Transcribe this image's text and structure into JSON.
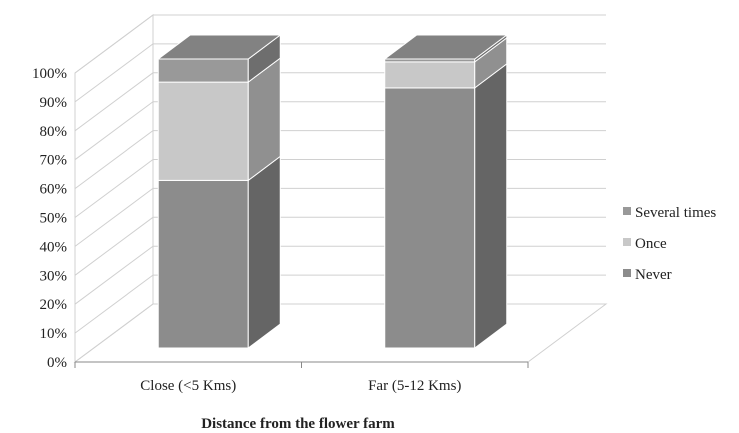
{
  "chart_data": {
    "type": "bar",
    "stacked": true,
    "percent": true,
    "three_d": true,
    "categories": [
      "Close (<5 Kms)",
      "Far (5-12 Kms)"
    ],
    "series": [
      {
        "name": "Never",
        "values": [
          58,
          90
        ]
      },
      {
        "name": "Once",
        "values": [
          34,
          9
        ]
      },
      {
        "name": "Several times",
        "values": [
          8,
          1
        ]
      }
    ],
    "y_ticks": [
      "0%",
      "10%",
      "20%",
      "30%",
      "40%",
      "50%",
      "60%",
      "70%",
      "80%",
      "90%",
      "100%"
    ],
    "ylim": [
      0,
      100
    ],
    "xlabel": "Distance from the flower farm",
    "ylabel": "",
    "grid": true,
    "legend_position": "right",
    "legend_order": [
      "Several times",
      "Once",
      "Never"
    ],
    "colors": {
      "Never": "#8c8c8c",
      "Once": "#c8c8c8",
      "Several times": "#999999"
    }
  }
}
